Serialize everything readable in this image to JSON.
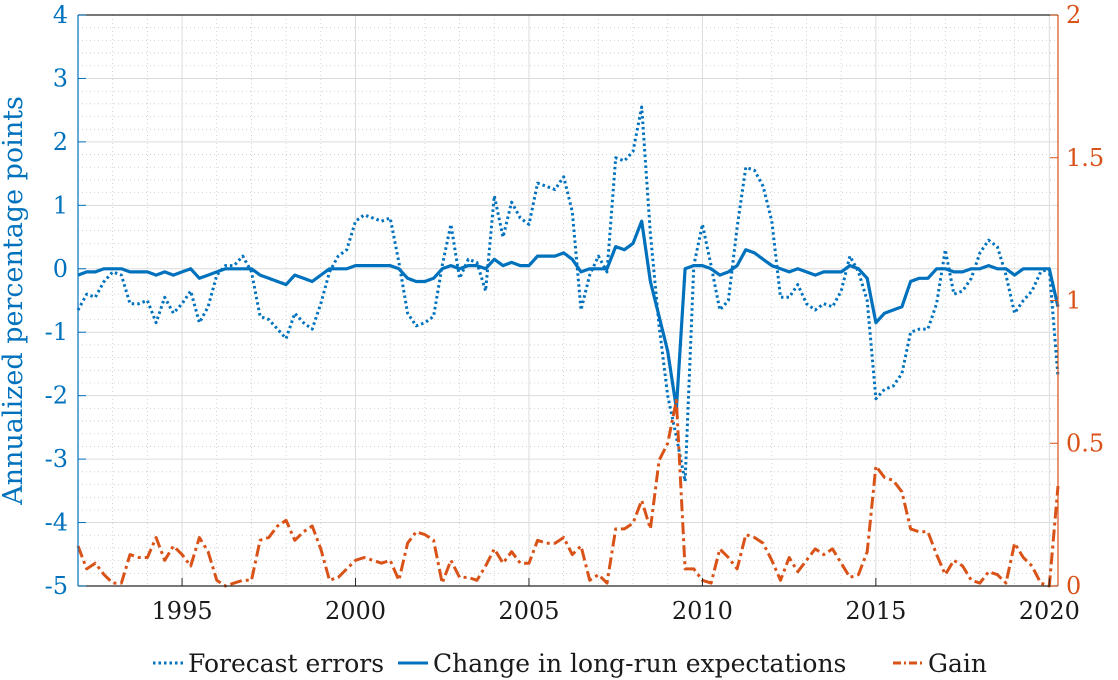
{
  "chart_data": {
    "type": "line",
    "ylabel": "Annualized percentage points",
    "ylabel_right": "",
    "xlim": [
      1992.0,
      2020.25
    ],
    "ylim": [
      -5,
      4
    ],
    "ylim_right": [
      0,
      2
    ],
    "grid": true,
    "minor_grid": true,
    "legend_position": "bottom",
    "x_ticks": [
      1995,
      2000,
      2005,
      2010,
      2015,
      2020
    ],
    "x_tick_labels": [
      "1995",
      "2000",
      "2005",
      "2010",
      "2015",
      "2020"
    ],
    "y_ticks": [
      -5,
      -4,
      -3,
      -2,
      -1,
      0,
      1,
      2,
      3,
      4
    ],
    "y_tick_labels": [
      "-5",
      "-4",
      "-3",
      "-2",
      "-1",
      "0",
      "1",
      "2",
      "3",
      "4"
    ],
    "y_right_ticks": [
      0,
      0.5,
      1,
      1.5,
      2
    ],
    "y_right_tick_labels": [
      "0",
      "0.5",
      "1",
      "1.5",
      "2"
    ],
    "x": [
      1992.0,
      1992.25,
      1992.5,
      1992.75,
      1993.0,
      1993.25,
      1993.5,
      1993.75,
      1994.0,
      1994.25,
      1994.5,
      1994.75,
      1995.0,
      1995.25,
      1995.5,
      1995.75,
      1996.0,
      1996.25,
      1996.5,
      1996.75,
      1997.0,
      1997.25,
      1997.5,
      1997.75,
      1998.0,
      1998.25,
      1998.5,
      1998.75,
      1999.0,
      1999.25,
      1999.5,
      1999.75,
      2000.0,
      2000.25,
      2000.5,
      2000.75,
      2001.0,
      2001.25,
      2001.5,
      2001.75,
      2002.0,
      2002.25,
      2002.5,
      2002.75,
      2003.0,
      2003.25,
      2003.5,
      2003.75,
      2004.0,
      2004.25,
      2004.5,
      2004.75,
      2005.0,
      2005.25,
      2005.5,
      2005.75,
      2006.0,
      2006.25,
      2006.5,
      2006.75,
      2007.0,
      2007.25,
      2007.5,
      2007.75,
      2008.0,
      2008.25,
      2008.5,
      2008.75,
      2009.0,
      2009.25,
      2009.5,
      2009.75,
      2010.0,
      2010.25,
      2010.5,
      2010.75,
      2011.0,
      2011.25,
      2011.5,
      2011.75,
      2012.0,
      2012.25,
      2012.5,
      2012.75,
      2013.0,
      2013.25,
      2013.5,
      2013.75,
      2014.0,
      2014.25,
      2014.5,
      2014.75,
      2015.0,
      2015.25,
      2015.5,
      2015.75,
      2016.0,
      2016.25,
      2016.5,
      2016.75,
      2017.0,
      2017.25,
      2017.5,
      2017.75,
      2018.0,
      2018.25,
      2018.5,
      2018.75,
      2019.0,
      2019.25,
      2019.5,
      2019.75,
      2020.0,
      2020.25
    ],
    "series": [
      {
        "name": "Forecast errors",
        "axis": "left",
        "color": "#0072BD",
        "style": "dotted",
        "values": [
          -0.65,
          -0.4,
          -0.45,
          -0.2,
          -0.05,
          -0.1,
          -0.55,
          -0.55,
          -0.5,
          -0.85,
          -0.45,
          -0.7,
          -0.55,
          -0.35,
          -0.85,
          -0.6,
          -0.1,
          0.05,
          0.05,
          0.2,
          -0.05,
          -0.75,
          -0.8,
          -0.95,
          -1.1,
          -0.7,
          -0.85,
          -0.95,
          -0.55,
          -0.05,
          0.2,
          0.3,
          0.75,
          0.85,
          0.8,
          0.75,
          0.8,
          0.1,
          -0.7,
          -0.9,
          -0.85,
          -0.75,
          0.05,
          0.7,
          -0.15,
          0.15,
          0.1,
          -0.35,
          1.15,
          0.5,
          1.05,
          0.8,
          0.7,
          1.35,
          1.3,
          1.25,
          1.45,
          0.9,
          -0.65,
          -0.1,
          0.2,
          -0.05,
          1.75,
          1.7,
          1.85,
          2.55,
          0.55,
          -0.9,
          -2.0,
          -2.65,
          -3.35,
          0.05,
          0.7,
          0.05,
          -0.65,
          -0.5,
          0.65,
          1.6,
          1.55,
          1.3,
          0.75,
          -0.45,
          -0.45,
          -0.25,
          -0.55,
          -0.65,
          -0.55,
          -0.6,
          -0.35,
          0.2,
          -0.05,
          -0.5,
          -2.05,
          -1.9,
          -1.85,
          -1.65,
          -1.0,
          -0.95,
          -0.95,
          -0.55,
          0.3,
          -0.4,
          -0.35,
          -0.15,
          0.25,
          0.45,
          0.35,
          -0.1,
          -0.7,
          -0.5,
          -0.35,
          -0.05,
          0.0,
          -1.7
        ]
      },
      {
        "name": "Change in long-run expectations",
        "axis": "left",
        "color": "#0072BD",
        "style": "solid",
        "values": [
          -0.1,
          -0.05,
          -0.05,
          0.0,
          0.0,
          0.0,
          -0.05,
          -0.05,
          -0.05,
          -0.1,
          -0.05,
          -0.1,
          -0.05,
          0.0,
          -0.15,
          -0.1,
          -0.05,
          0.0,
          0.0,
          0.0,
          0.0,
          -0.1,
          -0.15,
          -0.2,
          -0.25,
          -0.1,
          -0.15,
          -0.2,
          -0.1,
          0.0,
          0.0,
          0.0,
          0.05,
          0.05,
          0.05,
          0.05,
          0.05,
          0.0,
          -0.15,
          -0.2,
          -0.2,
          -0.15,
          0.0,
          0.05,
          0.0,
          0.05,
          0.05,
          0.0,
          0.15,
          0.05,
          0.1,
          0.05,
          0.05,
          0.2,
          0.2,
          0.2,
          0.25,
          0.15,
          -0.05,
          0.0,
          0.0,
          0.0,
          0.35,
          0.3,
          0.4,
          0.75,
          -0.2,
          -0.75,
          -1.3,
          -2.2,
          0.0,
          0.05,
          0.05,
          0.0,
          -0.1,
          -0.05,
          0.05,
          0.3,
          0.25,
          0.15,
          0.05,
          0.0,
          -0.05,
          0.0,
          -0.05,
          -0.1,
          -0.05,
          -0.05,
          -0.05,
          0.05,
          0.0,
          -0.15,
          -0.85,
          -0.7,
          -0.65,
          -0.6,
          -0.2,
          -0.15,
          -0.15,
          0.0,
          0.0,
          -0.05,
          -0.05,
          0.0,
          0.0,
          0.05,
          0.0,
          0.0,
          -0.1,
          0.0,
          0.0,
          0.0,
          0.0,
          -0.6
        ]
      },
      {
        "name": "Gain",
        "axis": "right",
        "color": "#D95319",
        "style": "dashdot",
        "values": [
          0.14,
          0.06,
          0.08,
          0.04,
          0.01,
          0.01,
          0.11,
          0.1,
          0.1,
          0.17,
          0.09,
          0.14,
          0.11,
          0.07,
          0.17,
          0.12,
          0.02,
          0.0,
          0.01,
          0.02,
          0.02,
          0.16,
          0.17,
          0.21,
          0.23,
          0.16,
          0.19,
          0.21,
          0.13,
          0.02,
          0.03,
          0.06,
          0.09,
          0.1,
          0.09,
          0.08,
          0.09,
          0.02,
          0.15,
          0.19,
          0.18,
          0.16,
          0.01,
          0.09,
          0.03,
          0.03,
          0.02,
          0.07,
          0.13,
          0.08,
          0.12,
          0.08,
          0.08,
          0.16,
          0.15,
          0.15,
          0.17,
          0.11,
          0.14,
          0.02,
          0.04,
          0.01,
          0.2,
          0.2,
          0.22,
          0.3,
          0.2,
          0.44,
          0.5,
          0.65,
          0.06,
          0.06,
          0.02,
          0.01,
          0.13,
          0.1,
          0.06,
          0.18,
          0.17,
          0.15,
          0.09,
          0.02,
          0.1,
          0.05,
          0.09,
          0.13,
          0.11,
          0.13,
          0.08,
          0.03,
          0.04,
          0.12,
          0.42,
          0.38,
          0.37,
          0.33,
          0.2,
          0.19,
          0.19,
          0.11,
          0.04,
          0.09,
          0.07,
          0.02,
          0.01,
          0.05,
          0.04,
          0.01,
          0.15,
          0.1,
          0.07,
          0.01,
          0.0,
          0.35
        ]
      }
    ]
  }
}
